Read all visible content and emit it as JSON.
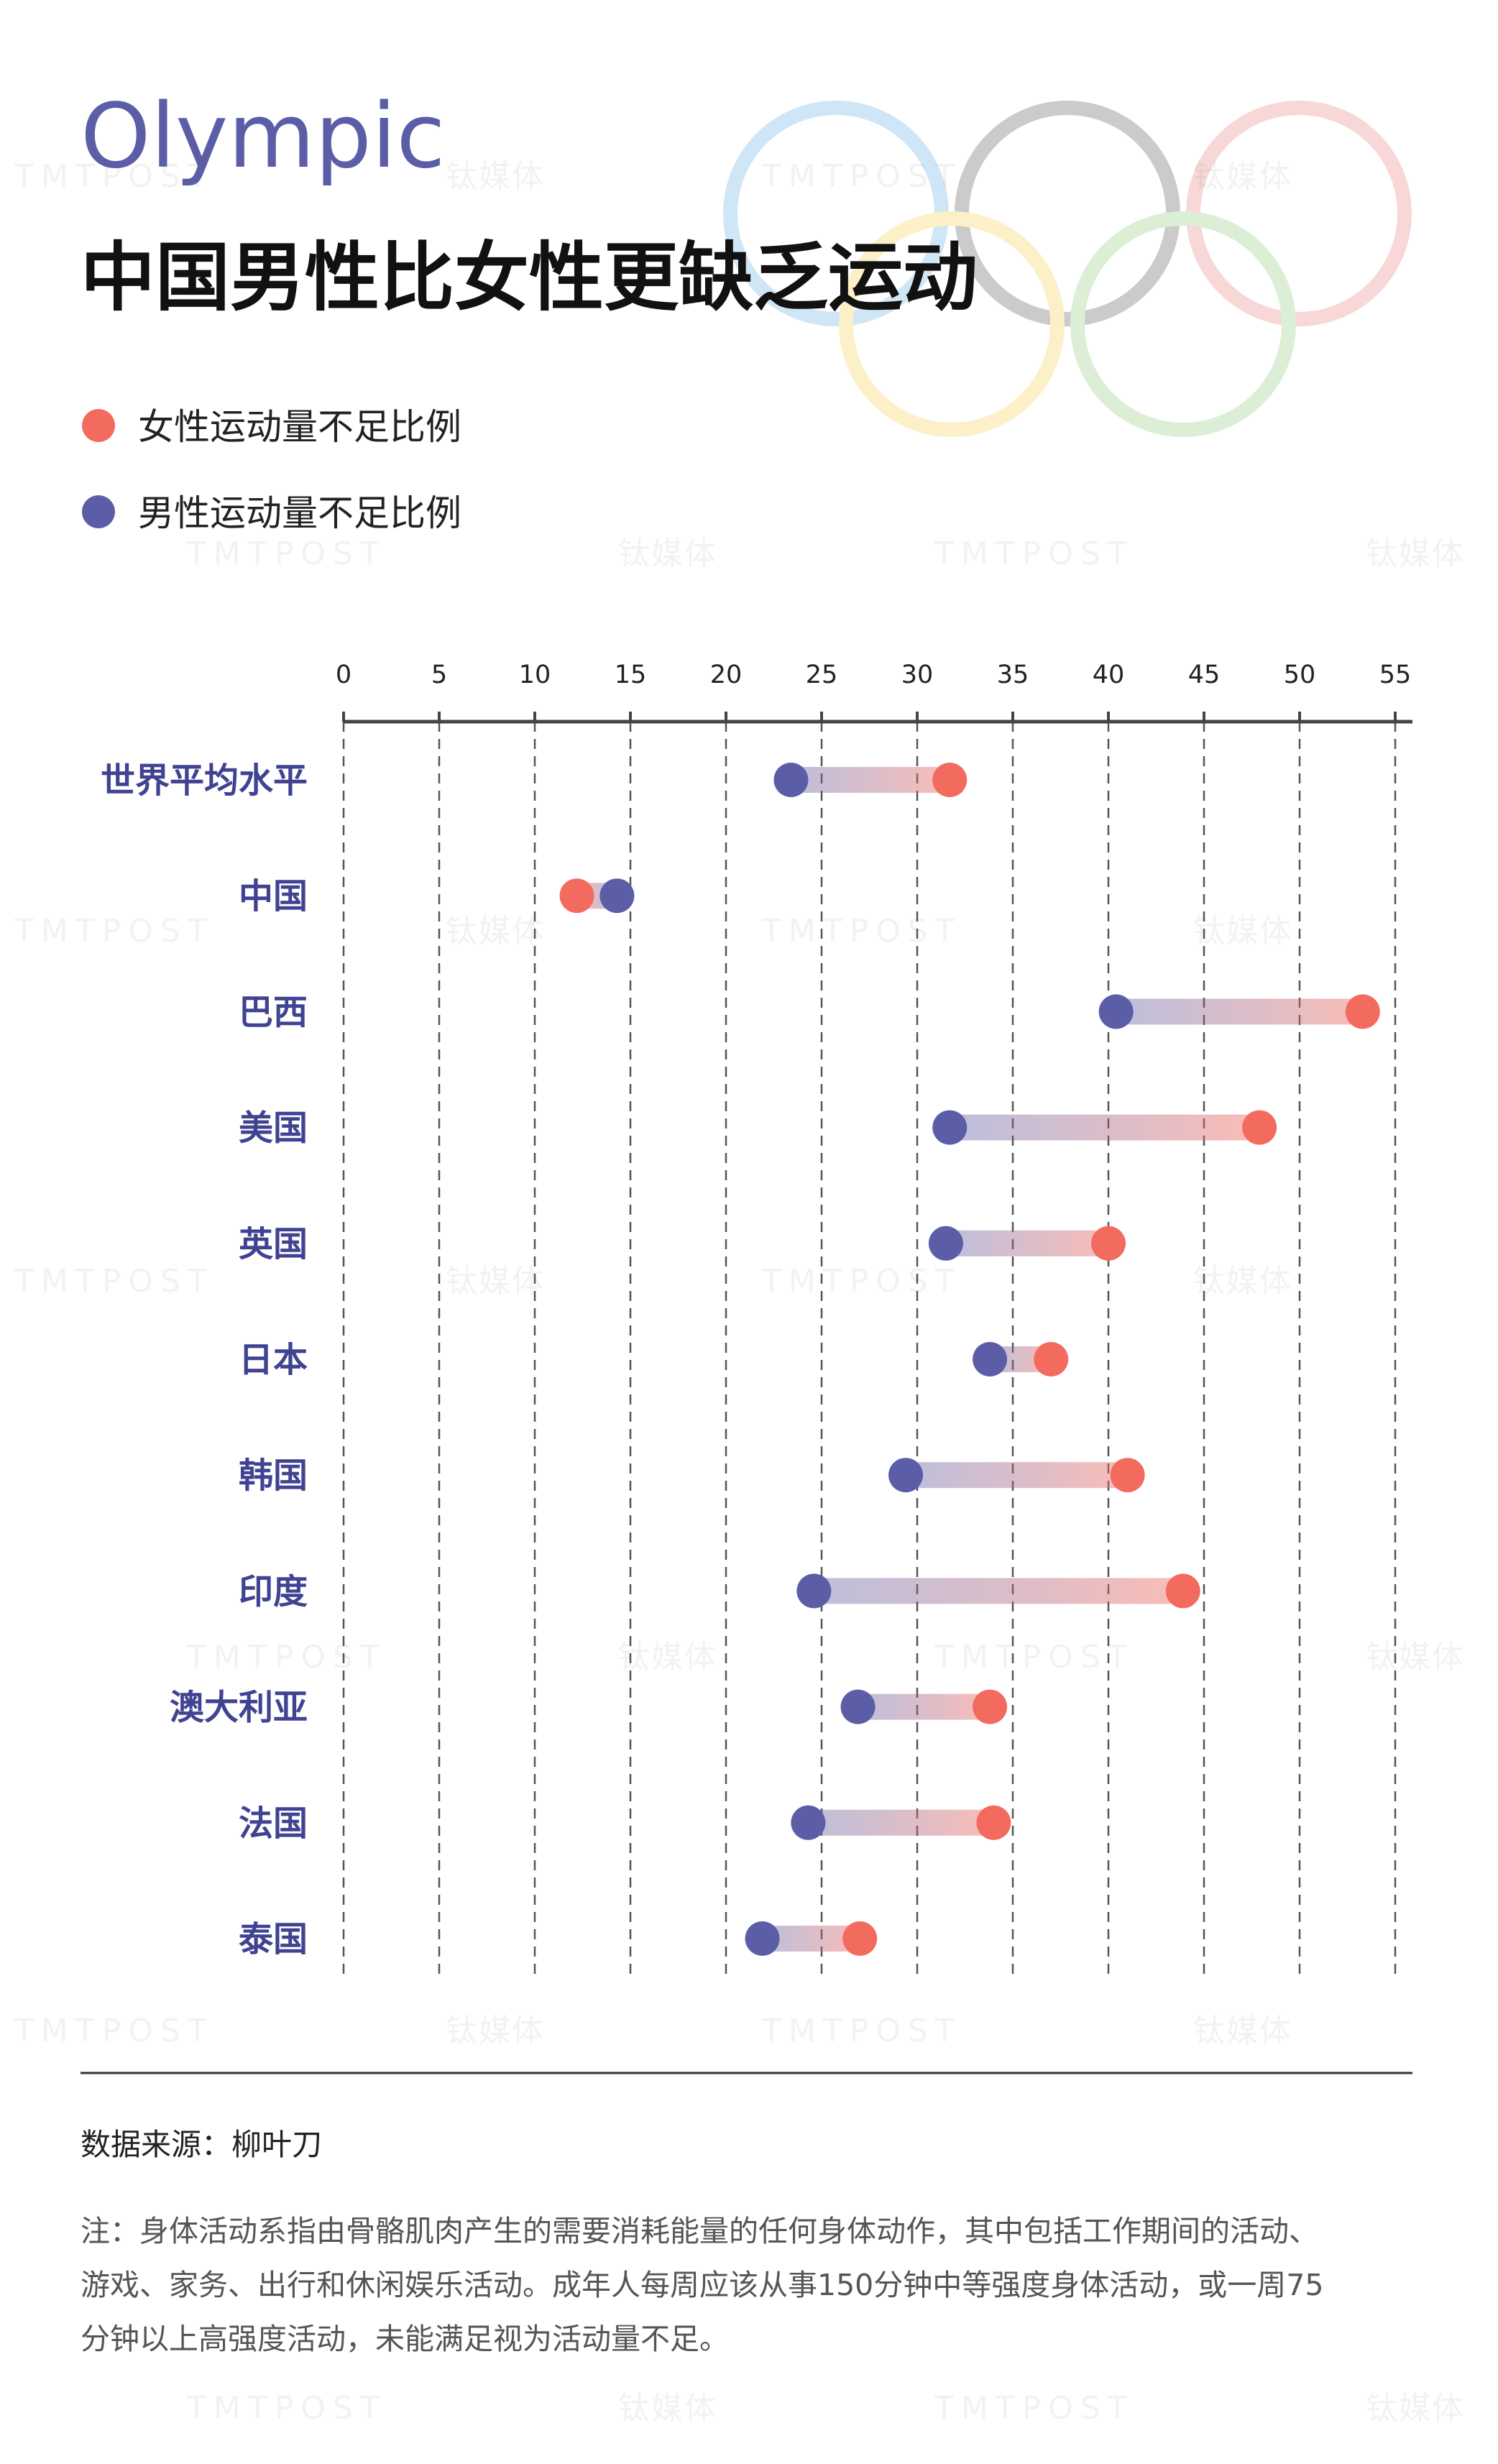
{
  "header": {
    "kicker": "Olympic",
    "title": "中国男性比女性更缺乏运动"
  },
  "watermark": {
    "text_en": "TMTPOST",
    "text_cn": "钛媒体"
  },
  "colors": {
    "female": "#f36b5e",
    "male": "#5b5ea6",
    "label": "#3f4391",
    "kicker": "#5b5ea6",
    "text": "#222222",
    "note": "#555555"
  },
  "legend": {
    "female": "女性运动量不足比例",
    "male": "男性运动量不足比例"
  },
  "chart_data": {
    "type": "dumbbell",
    "xlim": [
      0,
      56
    ],
    "x_ticks": [
      0,
      5,
      10,
      15,
      20,
      25,
      30,
      35,
      40,
      45,
      50,
      55
    ],
    "legend_position": "top-left",
    "grid": true,
    "categories": [
      "世界平均水平",
      "中国",
      "巴西",
      "美国",
      "英国",
      "日本",
      "韩国",
      "印度",
      "澳大利亚",
      "法国",
      "泰国"
    ],
    "series": [
      {
        "name": "女性运动量不足比例",
        "values": [
          31.7,
          12.2,
          53.3,
          47.9,
          40.0,
          37.0,
          41.0,
          43.9,
          33.8,
          34.0,
          27.0
        ]
      },
      {
        "name": "男性运动量不足比例",
        "values": [
          23.4,
          14.3,
          40.4,
          31.7,
          31.5,
          33.8,
          29.4,
          24.6,
          26.9,
          24.3,
          21.9
        ]
      }
    ]
  },
  "footer": {
    "source": "数据来源：柳叶刀",
    "note_lines": [
      "注：身体活动系指由骨骼肌肉产生的需要消耗能量的任何身体动作，其中包括工作期间的活动、",
      "游戏、家务、出行和休闲娱乐活动。成年人每周应该从事150分钟中等强度身体活动，或一周75",
      "分钟以上高强度活动，未能满足视为活动量不足。"
    ]
  }
}
